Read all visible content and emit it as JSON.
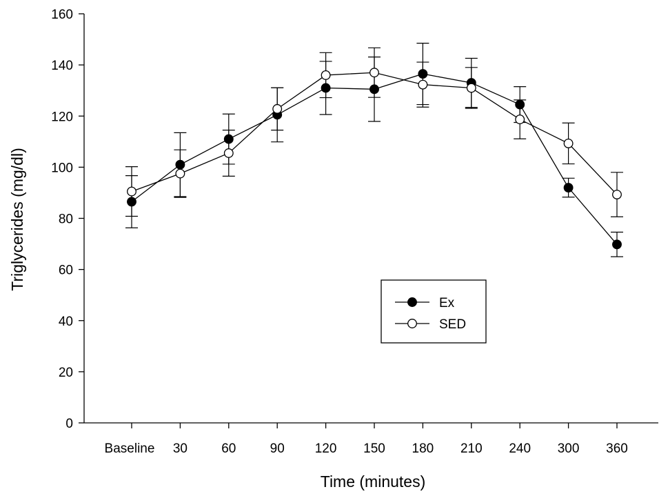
{
  "chart_data": {
    "type": "line",
    "title": "",
    "xlabel": "Time (minutes)",
    "ylabel": "Triglycerides (mg/dl)",
    "categories": [
      "Baseline",
      "30",
      "60",
      "90",
      "120",
      "150",
      "180",
      "210",
      "240",
      "300",
      "360"
    ],
    "ylim": [
      0,
      160
    ],
    "yticks": [
      0,
      20,
      40,
      60,
      80,
      100,
      120,
      140,
      160
    ],
    "grid": false,
    "legend_position": "center-right",
    "series": [
      {
        "name": "Ex",
        "marker": "filled-circle",
        "color": "#000000",
        "values": [
          86.5,
          101,
          111,
          120.5,
          131,
          130.5,
          136.5,
          133,
          124.5,
          92,
          69.8
        ],
        "error": [
          10.2,
          12.5,
          9.8,
          10.6,
          10.4,
          12.6,
          12,
          9.6,
          7,
          3.7,
          4.8
        ]
      },
      {
        "name": "SED",
        "marker": "open-circle",
        "color": "#000000",
        "values": [
          90.5,
          97.5,
          105.5,
          122.8,
          136,
          137,
          132.3,
          131,
          118.7,
          109.3,
          89.3
        ],
        "error": [
          9.7,
          9.3,
          9,
          8.3,
          8.8,
          9.7,
          8.8,
          8,
          7.6,
          8,
          8.7
        ]
      }
    ]
  }
}
